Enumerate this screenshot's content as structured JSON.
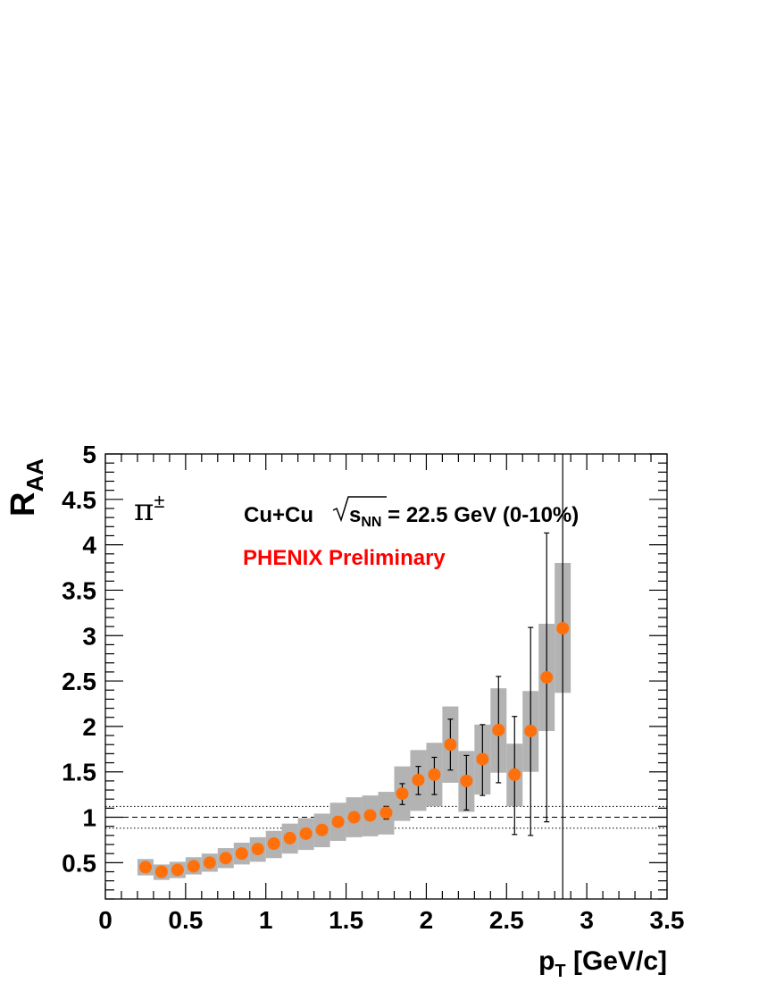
{
  "chart_data": {
    "type": "scatter",
    "xlabel_main": "p",
    "xlabel_sub": "T",
    "xlabel_unit": " [GeV/c]",
    "ylabel_main": "R",
    "ylabel_sub": "AA",
    "xlim": [
      0,
      3.5
    ],
    "ylim": [
      0.1,
      5
    ],
    "xticks": [
      0,
      0.5,
      1,
      1.5,
      2,
      2.5,
      3,
      3.5
    ],
    "xtick_labels": [
      "0",
      "0.5",
      "1",
      "1.5",
      "2",
      "2.5",
      "3",
      "3.5"
    ],
    "yticks": [
      0.5,
      1,
      1.5,
      2,
      2.5,
      3,
      3.5,
      4,
      4.5,
      5
    ],
    "ytick_labels": [
      "0.5",
      "1",
      "1.5",
      "2",
      "2.5",
      "3",
      "3.5",
      "4",
      "4.5",
      "5"
    ],
    "particle_label": "π",
    "particle_sup": "±",
    "system_label": "Cu+Cu",
    "energy_sub": "NN",
    "energy_symbol": "s",
    "energy_text": " = 22.5 GeV (0-10%)",
    "preliminary_label": "PHENIX Preliminary",
    "marker_color": "#ff6f0a",
    "sys_color": "#b3b3b3",
    "reference_lines": {
      "unity": 1.0,
      "band": [
        0.88,
        1.12
      ]
    },
    "series": [
      {
        "points": [
          {
            "x": 0.25,
            "y": 0.45,
            "sys": [
              0.36,
              0.54
            ],
            "stat": null
          },
          {
            "x": 0.35,
            "y": 0.4,
            "sys": [
              0.31,
              0.48
            ],
            "stat": null
          },
          {
            "x": 0.45,
            "y": 0.42,
            "sys": [
              0.33,
              0.51
            ],
            "stat": null
          },
          {
            "x": 0.55,
            "y": 0.46,
            "sys": [
              0.37,
              0.56
            ],
            "stat": null
          },
          {
            "x": 0.65,
            "y": 0.5,
            "sys": [
              0.4,
              0.6
            ],
            "stat": null
          },
          {
            "x": 0.75,
            "y": 0.55,
            "sys": [
              0.44,
              0.66
            ],
            "stat": null
          },
          {
            "x": 0.85,
            "y": 0.6,
            "sys": [
              0.48,
              0.72
            ],
            "stat": null
          },
          {
            "x": 0.95,
            "y": 0.65,
            "sys": [
              0.51,
              0.78
            ],
            "stat": null
          },
          {
            "x": 1.05,
            "y": 0.71,
            "sys": [
              0.55,
              0.85
            ],
            "stat": null
          },
          {
            "x": 1.15,
            "y": 0.77,
            "sys": [
              0.6,
              0.93
            ],
            "stat": null
          },
          {
            "x": 1.25,
            "y": 0.82,
            "sys": [
              0.64,
              0.99
            ],
            "stat": null
          },
          {
            "x": 1.35,
            "y": 0.86,
            "sys": [
              0.67,
              1.04
            ],
            "stat": null
          },
          {
            "x": 1.45,
            "y": 0.95,
            "sys": [
              0.74,
              1.16
            ],
            "stat": null
          },
          {
            "x": 1.55,
            "y": 1.0,
            "sys": [
              0.78,
              1.22
            ],
            "stat": null
          },
          {
            "x": 1.65,
            "y": 1.02,
            "sys": [
              0.79,
              1.24
            ],
            "stat": null
          },
          {
            "x": 1.75,
            "y": 1.05,
            "sys": [
              0.81,
              1.28
            ],
            "stat": [
              0.98,
              1.12
            ]
          },
          {
            "x": 1.85,
            "y": 1.26,
            "sys": [
              0.96,
              1.56
            ],
            "stat": [
              1.14,
              1.37
            ]
          },
          {
            "x": 1.95,
            "y": 1.41,
            "sys": [
              1.07,
              1.74
            ],
            "stat": [
              1.25,
              1.56
            ]
          },
          {
            "x": 2.05,
            "y": 1.47,
            "sys": [
              1.12,
              1.82
            ],
            "stat": [
              1.25,
              1.66
            ]
          },
          {
            "x": 2.15,
            "y": 1.8,
            "sys": [
              1.38,
              2.22
            ],
            "stat": [
              1.52,
              2.08
            ]
          },
          {
            "x": 2.25,
            "y": 1.4,
            "sys": [
              1.06,
              1.73
            ],
            "stat": [
              1.08,
              1.68
            ]
          },
          {
            "x": 2.35,
            "y": 1.64,
            "sys": [
              1.25,
              2.02
            ],
            "stat": [
              1.24,
              2.02
            ]
          },
          {
            "x": 2.45,
            "y": 1.96,
            "sys": [
              1.49,
              2.42
            ],
            "stat": [
              1.38,
              2.55
            ]
          },
          {
            "x": 2.55,
            "y": 1.47,
            "sys": [
              1.12,
              1.81
            ],
            "stat": [
              0.81,
              2.11
            ]
          },
          {
            "x": 2.65,
            "y": 1.95,
            "sys": [
              1.5,
              2.39
            ],
            "stat": [
              0.8,
              3.09
            ]
          },
          {
            "x": 2.75,
            "y": 2.54,
            "sys": [
              1.95,
              3.13
            ],
            "stat": [
              0.95,
              4.13
            ]
          },
          {
            "x": 2.85,
            "y": 3.08,
            "sys": [
              2.37,
              3.8
            ],
            "stat": [
              0.1,
              5
            ]
          }
        ]
      }
    ]
  }
}
